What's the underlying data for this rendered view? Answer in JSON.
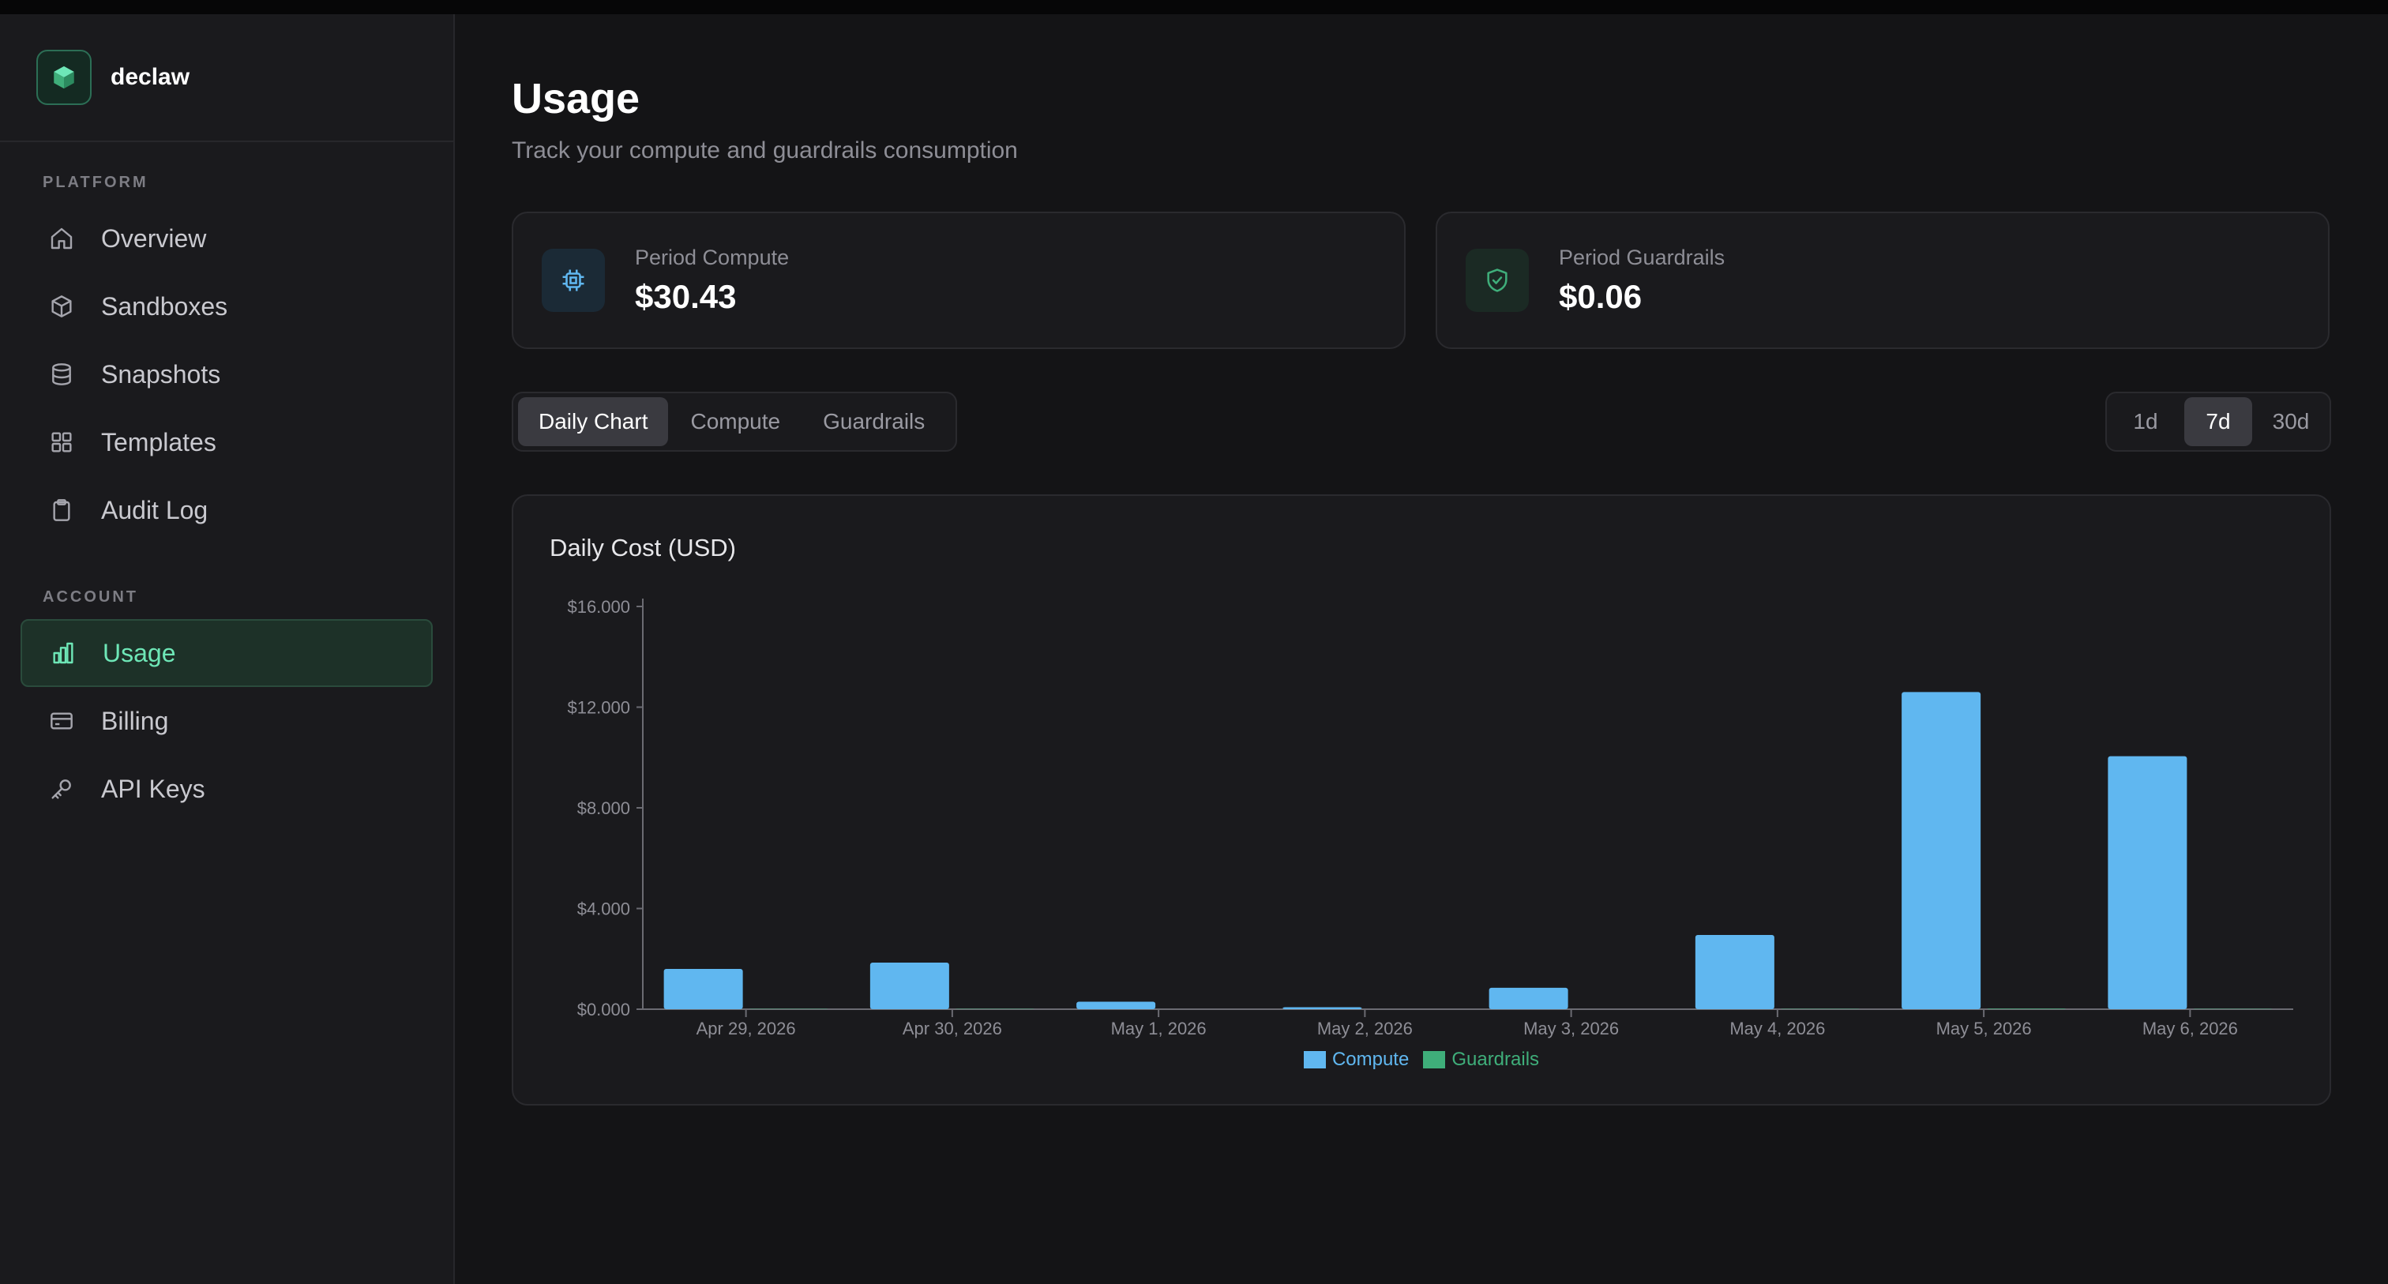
{
  "brand": {
    "name": "declaw",
    "accent": "#6ee7b7"
  },
  "sidebar": {
    "sections": [
      {
        "label": "PLATFORM",
        "items": [
          {
            "label": "Overview",
            "icon": "home-icon"
          },
          {
            "label": "Sandboxes",
            "icon": "cube-icon"
          },
          {
            "label": "Snapshots",
            "icon": "database-icon"
          },
          {
            "label": "Templates",
            "icon": "grid-icon"
          },
          {
            "label": "Audit Log",
            "icon": "clipboard-icon"
          }
        ]
      },
      {
        "label": "ACCOUNT",
        "items": [
          {
            "label": "Usage",
            "icon": "bar-chart-icon",
            "active": true
          },
          {
            "label": "Billing",
            "icon": "credit-card-icon"
          },
          {
            "label": "API Keys",
            "icon": "key-icon"
          }
        ]
      }
    ]
  },
  "header": {
    "title": "Usage",
    "subtitle": "Track your compute and guardrails consumption"
  },
  "cards": [
    {
      "label": "Period Compute",
      "value": "$30.43",
      "icon": "cpu-icon"
    },
    {
      "label": "Period Guardrails",
      "value": "$0.06",
      "icon": "shield-check-icon"
    }
  ],
  "tabs": [
    {
      "label": "Daily Chart",
      "active": true
    },
    {
      "label": "Compute",
      "active": false
    },
    {
      "label": "Guardrails",
      "active": false
    }
  ],
  "range": [
    {
      "label": "1d",
      "active": false
    },
    {
      "label": "7d",
      "active": true
    },
    {
      "label": "30d",
      "active": false
    }
  ],
  "chart_data": {
    "type": "bar",
    "title": "Daily Cost (USD)",
    "categories": [
      "Apr 29, 2026",
      "Apr 30, 2026",
      "May 1, 2026",
      "May 2, 2026",
      "May 3, 2026",
      "May 4, 2026",
      "May 5, 2026",
      "May 6, 2026"
    ],
    "series": [
      {
        "name": "Compute",
        "color": "#60b7f0",
        "values": [
          1.6,
          1.85,
          0.3,
          0.08,
          0.85,
          2.95,
          12.6,
          10.05
        ]
      },
      {
        "name": "Guardrails",
        "color": "#3fae7a",
        "values": [
          0.01,
          0.01,
          0.0,
          0.0,
          0.0,
          0.01,
          0.02,
          0.01
        ]
      }
    ],
    "yticks": [
      "$0.000",
      "$4.000",
      "$8.000",
      "$12.000",
      "$16.000"
    ],
    "ylim": [
      0,
      16
    ],
    "grid": false,
    "legend": "bottom"
  }
}
